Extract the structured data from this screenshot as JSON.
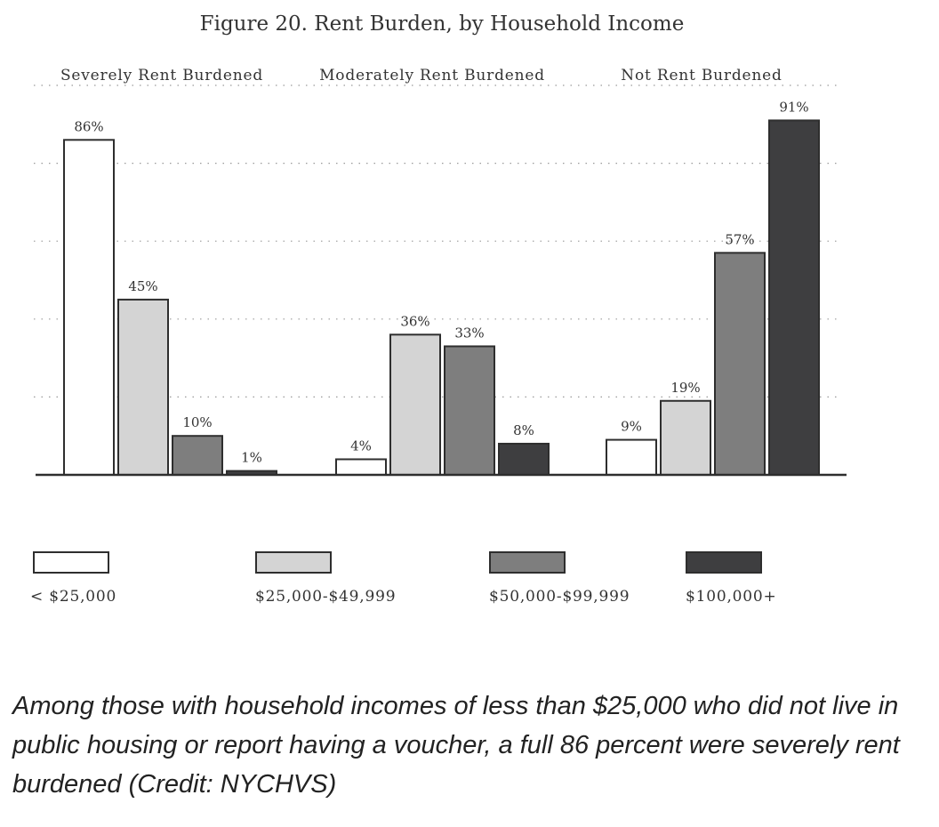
{
  "colors": {
    "under_25k": "#ffffff",
    "from_25k_to_49k": "#d4d4d4",
    "from_50k_to_99k": "#7e7e7e",
    "over_100k": "#3e3e40",
    "outline": "#2e2e2e",
    "gridline": "#9a9a9a"
  },
  "chart_data": {
    "type": "bar",
    "title": "Figure 20. Rent Burden, by Household Income",
    "categories": [
      "Severely Rent Burdened",
      "Moderately Rent Burdened",
      "Not Rent Burdened"
    ],
    "series": [
      {
        "name": "< $25,000",
        "values": [
          86,
          4,
          9
        ],
        "labels": [
          "86%",
          "4%",
          "9%"
        ]
      },
      {
        "name": "$25,000-$49,999",
        "values": [
          45,
          36,
          19
        ],
        "labels": [
          "45%",
          "36%",
          "19%"
        ]
      },
      {
        "name": "$50,000-$99,999",
        "values": [
          10,
          33,
          57
        ],
        "labels": [
          "10%",
          "33%",
          "57%"
        ]
      },
      {
        "name": "$100,000+",
        "values": [
          1,
          8,
          91
        ],
        "labels": [
          "1%",
          "8%",
          "91%"
        ]
      }
    ],
    "xlabel": "",
    "ylabel": "",
    "ylim": [
      0,
      100
    ],
    "unit": "%",
    "grid": true,
    "legend_position": "bottom"
  },
  "caption": "Among those with household incomes of less than $25,000 who did not live in public housing or report having a voucher, a full 86 percent were severely rent burdened (Credit: NYCHVS)"
}
